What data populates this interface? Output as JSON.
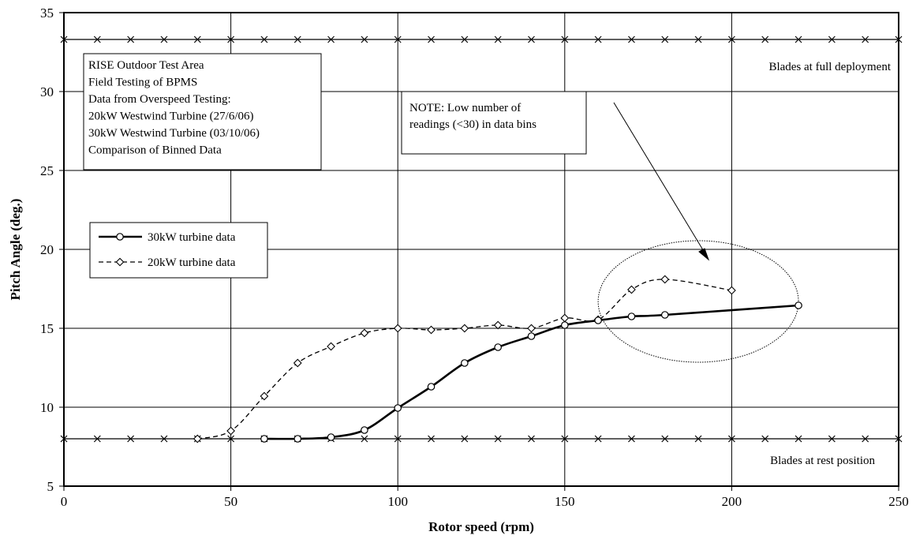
{
  "chart_data": {
    "type": "line",
    "xlabel": "Rotor speed (rpm)",
    "ylabel": "Pitch Angle (deg.)",
    "xlim": [
      0,
      250
    ],
    "ylim": [
      5,
      35
    ],
    "x_ticks": [
      0,
      50,
      100,
      150,
      200,
      250
    ],
    "y_ticks": [
      5,
      10,
      15,
      20,
      25,
      30,
      35
    ],
    "x_tick_labels": [
      "0",
      "50",
      "100",
      "150",
      "200",
      "250"
    ],
    "y_tick_labels": [
      "5",
      "10",
      "15",
      "20",
      "25",
      "30",
      "35"
    ],
    "grid": true,
    "info_box": [
      "RISE Outdoor Test Area",
      "Field Testing of BPMS",
      "Data from Overspeed Testing:",
      "20kW Westwind Turbine (27/6/06)",
      "30kW Westwind Turbine (03/10/06)",
      "Comparison of Binned Data"
    ],
    "note_box": [
      "NOTE: Low number of",
      "readings (<30) in data bins"
    ],
    "reference_lines": [
      {
        "label": "Blades at full deployment",
        "y": 33.3,
        "x_start": 0,
        "x_end": 250,
        "x_step": 10
      },
      {
        "label": "Blades at rest position",
        "y": 8.0,
        "x_start": 0,
        "x_end": 250,
        "x_step": 10
      }
    ],
    "legend_position": "left",
    "series": [
      {
        "name": "30kW turbine data",
        "style": "solid",
        "marker": "circle",
        "color": "#000000",
        "x": [
          60,
          70,
          80,
          90,
          100,
          110,
          120,
          130,
          140,
          150,
          160,
          170,
          180,
          220
        ],
        "y": [
          8.0,
          8.0,
          8.1,
          8.55,
          9.95,
          11.3,
          12.8,
          13.8,
          14.5,
          15.2,
          15.5,
          15.75,
          15.85,
          16.45
        ]
      },
      {
        "name": "20kW turbine data",
        "style": "dashed",
        "marker": "diamond",
        "color": "#000000",
        "x": [
          40,
          50,
          60,
          70,
          80,
          90,
          100,
          110,
          120,
          130,
          140,
          150,
          160,
          170,
          180,
          200
        ],
        "y": [
          8.0,
          8.5,
          10.7,
          12.8,
          13.85,
          14.7,
          15.0,
          14.9,
          15.0,
          15.2,
          15.0,
          15.65,
          15.55,
          17.45,
          18.1,
          17.4
        ]
      }
    ],
    "annotation_ellipse": {
      "cx": 190,
      "cy": 16.7,
      "rx": 30,
      "ry": 3.85
    }
  }
}
